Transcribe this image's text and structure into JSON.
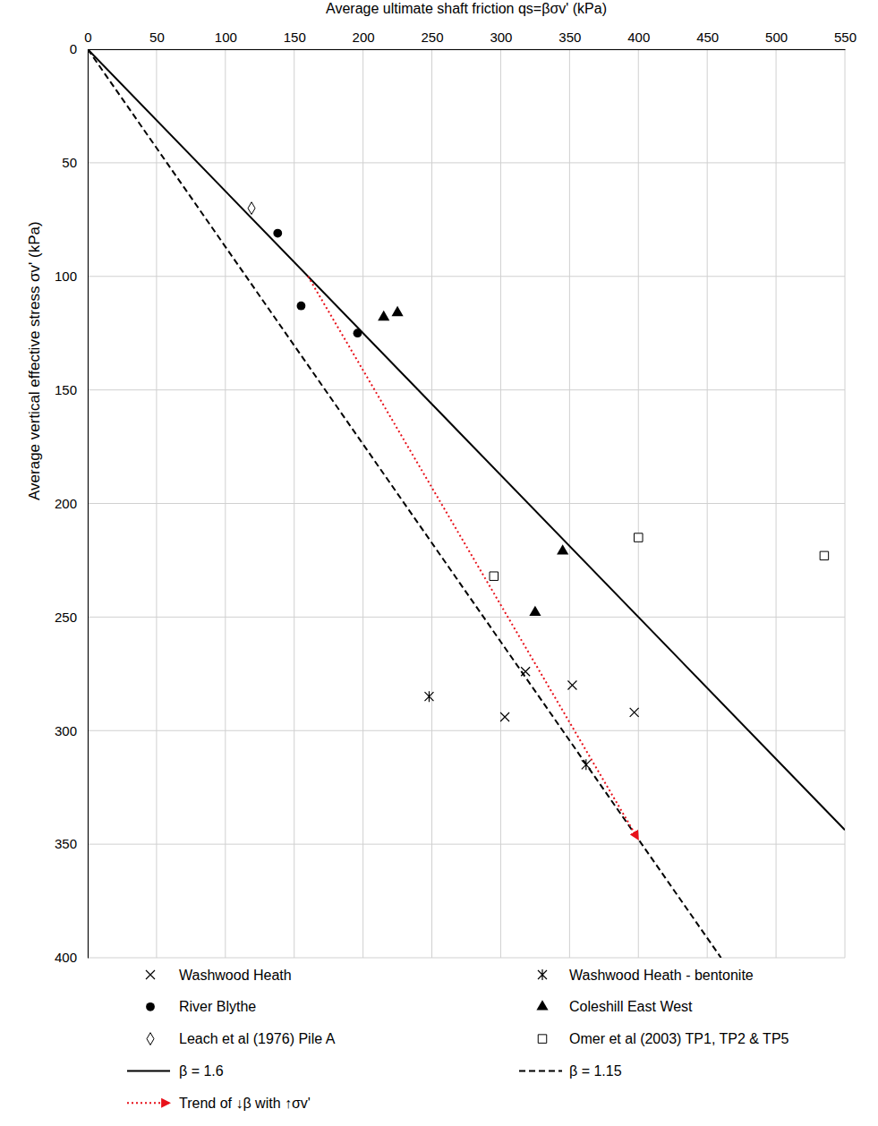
{
  "chart_data": {
    "type": "scatter",
    "x_label": "Average ultimate shaft friction qs=βσv' (kPa)",
    "y_label": "Average vertical effective stress σv' (kPa)",
    "xlim": [
      0,
      550
    ],
    "ylim": [
      0,
      400
    ],
    "xticks": [
      0,
      50,
      100,
      150,
      200,
      250,
      300,
      350,
      400,
      450,
      500,
      550
    ],
    "yticks": [
      0,
      50,
      100,
      150,
      200,
      250,
      300,
      350,
      400
    ],
    "grid": true,
    "legend": "bottom",
    "series": [
      {
        "name": "Washwood Heath",
        "type": "scatter",
        "marker": "x",
        "color": "#000000",
        "x": [
          303,
          318,
          352,
          397
        ],
        "values": [
          294,
          274,
          280,
          292
        ]
      },
      {
        "name": "Washwood Heath - bentonite",
        "type": "scatter",
        "marker": "asterisk",
        "color": "#000000",
        "x": [
          248,
          362
        ],
        "values": [
          285,
          315
        ]
      },
      {
        "name": "River Blythe",
        "type": "scatter",
        "marker": "circle",
        "color": "#000000",
        "x": [
          138,
          155,
          196
        ],
        "values": [
          81,
          113,
          125
        ]
      },
      {
        "name": "Coleshill East West",
        "type": "scatter",
        "marker": "triangle",
        "color": "#000000",
        "x": [
          215,
          225,
          345,
          325
        ],
        "values": [
          118,
          116,
          221,
          248
        ]
      },
      {
        "name": "Leach et al (1976) Pile A",
        "type": "scatter",
        "marker": "diamond-open",
        "color": "#000000",
        "x": [
          119
        ],
        "values": [
          70
        ]
      },
      {
        "name": "Omer et al (2003) TP1, TP2 & TP5",
        "type": "scatter",
        "marker": "square-open",
        "color": "#000000",
        "x": [
          400,
          535,
          295
        ],
        "values": [
          215,
          223,
          232
        ]
      },
      {
        "name": "β = 1.6",
        "type": "line",
        "line_style": "solid",
        "color": "#000000",
        "x": [
          0,
          550
        ],
        "values": [
          0,
          343.75
        ]
      },
      {
        "name": "β = 1.15",
        "type": "line",
        "line_style": "dashed",
        "color": "#000000",
        "x": [
          0,
          460
        ],
        "values": [
          0,
          400
        ]
      },
      {
        "name": "Trend of ↓β with ↑σv'",
        "type": "line",
        "line_style": "dotted",
        "marker": "arrow",
        "color": "#e8111a",
        "x": [
          160,
          400
        ],
        "values": [
          100,
          348
        ]
      }
    ]
  }
}
